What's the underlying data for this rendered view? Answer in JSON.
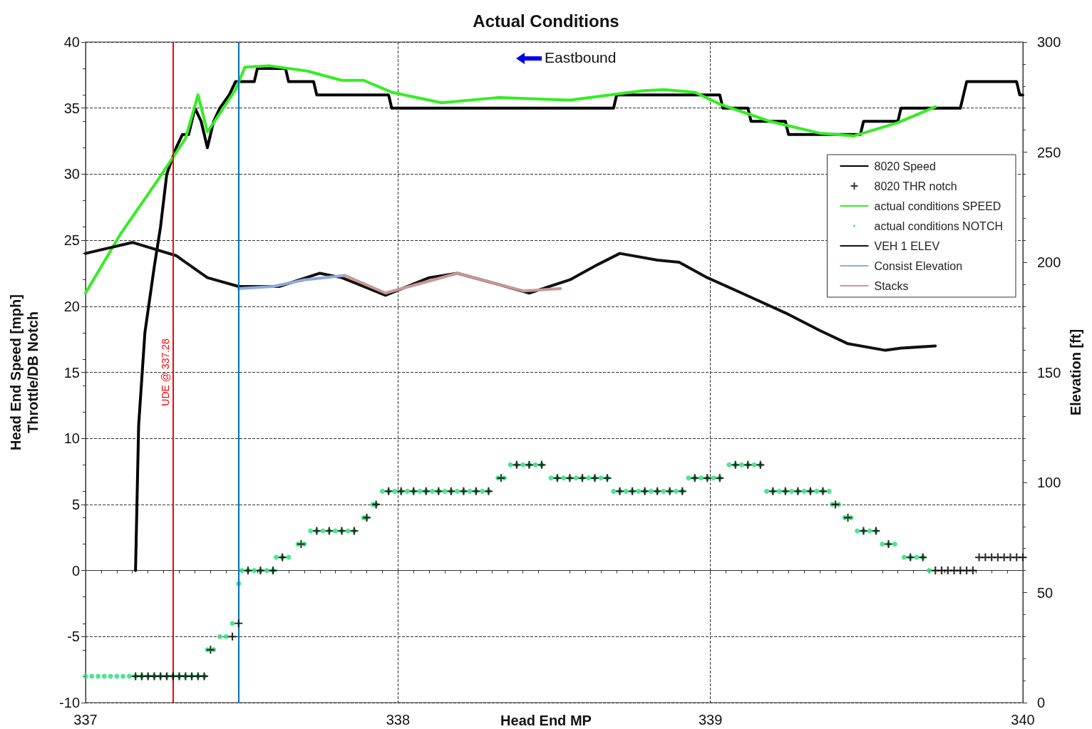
{
  "chart_data": {
    "type": "line",
    "title": "Actual Conditions",
    "xlabel": "Head End MP",
    "ylabel": "Head End Speed [mph]\nThrottle/DB Notch",
    "y2label": "Elevation [ft]",
    "xlim": [
      337,
      340
    ],
    "xticks": [
      337,
      338,
      339,
      340
    ],
    "ylim": [
      -10,
      40
    ],
    "yticks": [
      -10,
      -5,
      0,
      5,
      10,
      15,
      20,
      25,
      30,
      35,
      40
    ],
    "y2lim": [
      0,
      300
    ],
    "y2ticks": [
      0,
      50,
      100,
      150,
      200,
      250,
      300
    ],
    "grid": true,
    "legend": "top right",
    "marker": "none",
    "annotations": [
      "Eastbound"
    ],
    "ref_lines": [
      {
        "axis": "x",
        "value": 337.28,
        "label": "UDE @ 337.28",
        "color": "#ff0000"
      },
      {
        "axis": "x",
        "value": 337.49,
        "color": "#0070c0"
      }
    ],
    "series": [
      {
        "name": "8020 Speed",
        "color": "#000000",
        "x": [
          337.16,
          337.17,
          337.19,
          337.22,
          337.24,
          337.26,
          337.29,
          337.31,
          337.33,
          337.35,
          337.37,
          337.39,
          337.41,
          337.43,
          337.46,
          337.48,
          337.54,
          337.55,
          337.64,
          337.65,
          337.73,
          337.74,
          337.97,
          337.98,
          338.69,
          338.7,
          339.03,
          339.04,
          339.12,
          339.13,
          339.24,
          339.25,
          339.48,
          339.49,
          339.6,
          339.61,
          339.8,
          339.82,
          339.98,
          339.99,
          340.0
        ],
        "values": [
          0,
          11,
          18,
          23,
          26,
          30,
          32,
          33,
          33,
          35,
          34,
          32,
          34,
          35,
          36,
          37,
          37,
          38,
          38,
          37,
          37,
          36,
          36,
          35,
          35,
          36,
          36,
          35,
          35,
          34,
          34,
          33,
          33,
          34,
          34,
          35,
          35,
          37,
          37,
          36,
          36
        ]
      },
      {
        "name": "8020 THR notch",
        "type": "scatter",
        "marker": "cross",
        "color": "#000000",
        "x": [
          337.16,
          337.18,
          337.2,
          337.22,
          337.24,
          337.26,
          337.28,
          337.3,
          337.32,
          337.34,
          337.36,
          337.38,
          337.4,
          337.47,
          337.49,
          337.52,
          337.56,
          337.6,
          337.63,
          337.69,
          337.74,
          337.78,
          337.82,
          337.86,
          337.9,
          337.93,
          337.97,
          338.01,
          338.05,
          338.09,
          338.13,
          338.17,
          338.21,
          338.25,
          338.29,
          338.33,
          338.38,
          338.42,
          338.46,
          338.51,
          338.55,
          338.59,
          338.63,
          338.67,
          338.71,
          338.75,
          338.79,
          338.83,
          338.87,
          338.91,
          338.95,
          338.99,
          339.03,
          339.08,
          339.12,
          339.16,
          339.2,
          339.24,
          339.28,
          339.32,
          339.36,
          339.4,
          339.44,
          339.49,
          339.53,
          339.57,
          339.64,
          339.68,
          339.72,
          339.74,
          339.76,
          339.78,
          339.8,
          339.82,
          339.84,
          339.86,
          339.88,
          339.9,
          339.92,
          339.94,
          339.96,
          339.98,
          340.0
        ],
        "values": [
          -8,
          -8,
          -8,
          -8,
          -8,
          -8,
          -8,
          -8,
          -8,
          -8,
          -8,
          -8,
          -6,
          -5,
          -4,
          0,
          0,
          0,
          1,
          2,
          3,
          3,
          3,
          3,
          4,
          5,
          6,
          6,
          6,
          6,
          6,
          6,
          6,
          6,
          6,
          7,
          8,
          8,
          8,
          7,
          7,
          7,
          7,
          7,
          6,
          6,
          6,
          6,
          6,
          6,
          7,
          7,
          7,
          8,
          8,
          8,
          6,
          6,
          6,
          6,
          6,
          5,
          4,
          3,
          3,
          2,
          1,
          1,
          0,
          0,
          0,
          0,
          0,
          0,
          0,
          1,
          1,
          1,
          1,
          1,
          1,
          1,
          1
        ]
      },
      {
        "name": "actual conditions SPEED",
        "color": "#33ee22",
        "x": [
          337.0,
          337.11,
          337.23,
          337.32,
          337.36,
          337.39,
          337.43,
          337.48,
          337.51,
          337.59,
          337.71,
          337.82,
          337.89,
          337.98,
          338.14,
          338.32,
          338.55,
          338.78,
          338.85,
          338.95,
          339.03,
          339.19,
          339.35,
          339.46,
          339.6,
          339.72
        ],
        "values": [
          21,
          25.4,
          29.5,
          32.7,
          36,
          33.2,
          34.6,
          36.4,
          38.1,
          38.2,
          37.8,
          37.1,
          37.1,
          36.2,
          35.4,
          35.8,
          35.6,
          36.3,
          36.4,
          36.2,
          35.3,
          34,
          33.1,
          32.9,
          33.9,
          35.1
        ]
      },
      {
        "name": "actual conditions NOTCH",
        "type": "scatter",
        "marker": "circle",
        "color": "#22e070",
        "x": [
          337.0,
          337.02,
          337.04,
          337.06,
          337.08,
          337.1,
          337.12,
          337.14,
          337.16,
          337.18,
          337.2,
          337.22,
          337.24,
          337.26,
          337.28,
          337.3,
          337.32,
          337.34,
          337.36,
          337.38,
          337.39,
          337.41,
          337.43,
          337.45,
          337.47,
          337.49,
          337.5,
          337.52,
          337.54,
          337.56,
          337.58,
          337.6,
          337.61,
          337.63,
          337.65,
          337.68,
          337.7,
          337.72,
          337.74,
          337.76,
          337.78,
          337.8,
          337.82,
          337.84,
          337.86,
          337.89,
          337.9,
          337.92,
          337.93,
          337.95,
          337.97,
          337.99,
          338.01,
          338.03,
          338.05,
          338.07,
          338.09,
          338.11,
          338.13,
          338.15,
          338.17,
          338.19,
          338.21,
          338.23,
          338.25,
          338.27,
          338.29,
          338.32,
          338.34,
          338.36,
          338.38,
          338.4,
          338.42,
          338.44,
          338.46,
          338.49,
          338.51,
          338.53,
          338.55,
          338.57,
          338.59,
          338.61,
          338.63,
          338.65,
          338.67,
          338.69,
          338.71,
          338.73,
          338.75,
          338.77,
          338.79,
          338.81,
          338.83,
          338.85,
          338.87,
          338.89,
          338.91,
          338.93,
          338.95,
          338.97,
          338.99,
          339.01,
          339.03,
          339.06,
          339.08,
          339.1,
          339.12,
          339.14,
          339.16,
          339.18,
          339.2,
          339.22,
          339.24,
          339.26,
          339.28,
          339.3,
          339.32,
          339.34,
          339.36,
          339.38,
          339.39,
          339.41,
          339.43,
          339.45,
          339.47,
          339.49,
          339.51,
          339.53,
          339.55,
          339.57,
          339.59,
          339.62,
          339.64,
          339.66,
          339.68,
          339.7
        ],
        "values": [
          -8,
          -8,
          -8,
          -8,
          -8,
          -8,
          -8,
          -8,
          -8,
          -8,
          -8,
          -8,
          -8,
          -8,
          -8,
          -8,
          -8,
          -8,
          -8,
          -8,
          -6,
          -6,
          -5,
          -5,
          -4,
          -1,
          0,
          0,
          0,
          0,
          0,
          0,
          1,
          1,
          1,
          2,
          2,
          3,
          3,
          3,
          3,
          3,
          3,
          3,
          3,
          4,
          4,
          5,
          5,
          6,
          6,
          6,
          6,
          6,
          6,
          6,
          6,
          6,
          6,
          6,
          6,
          6,
          6,
          6,
          6,
          6,
          6,
          7,
          7,
          8,
          8,
          8,
          8,
          8,
          8,
          7,
          7,
          7,
          7,
          7,
          7,
          7,
          7,
          7,
          7,
          6,
          6,
          6,
          6,
          6,
          6,
          6,
          6,
          6,
          6,
          6,
          6,
          7,
          7,
          7,
          7,
          7,
          7,
          8,
          8,
          8,
          8,
          8,
          8,
          6,
          6,
          6,
          6,
          6,
          6,
          6,
          6,
          6,
          6,
          6,
          5,
          5,
          4,
          4,
          3,
          3,
          3,
          3,
          2,
          2,
          2,
          1,
          1,
          1,
          1,
          0
        ]
      },
      {
        "name": "VEH 1 ELEV",
        "axis": "y2",
        "color": "#111111",
        "x": [
          337.0,
          337.15,
          337.29,
          337.39,
          337.49,
          337.62,
          337.75,
          337.82,
          337.96,
          338.1,
          338.19,
          338.32,
          338.42,
          338.55,
          338.64,
          338.71,
          338.83,
          338.9,
          338.99,
          339.1,
          339.24,
          339.35,
          339.44,
          339.56,
          339.61,
          339.72
        ],
        "values": [
          204,
          209,
          203,
          193,
          189,
          189,
          195,
          193,
          185,
          193,
          195,
          190,
          186,
          192,
          199,
          204,
          201,
          200,
          193,
          186,
          177,
          169,
          163,
          160,
          161,
          162
        ]
      },
      {
        "name": "Consist Elevation",
        "axis": "y2",
        "color": "#8eaadb",
        "x": [
          337.49,
          337.6,
          337.7,
          337.83
        ],
        "values": [
          188,
          189,
          192,
          194
        ]
      },
      {
        "name": "Stacks",
        "axis": "y2",
        "color": "#c89696",
        "x": [
          337.83,
          337.96,
          338.19,
          338.4,
          338.52
        ],
        "values": [
          194,
          186,
          195,
          187,
          188
        ]
      }
    ]
  }
}
